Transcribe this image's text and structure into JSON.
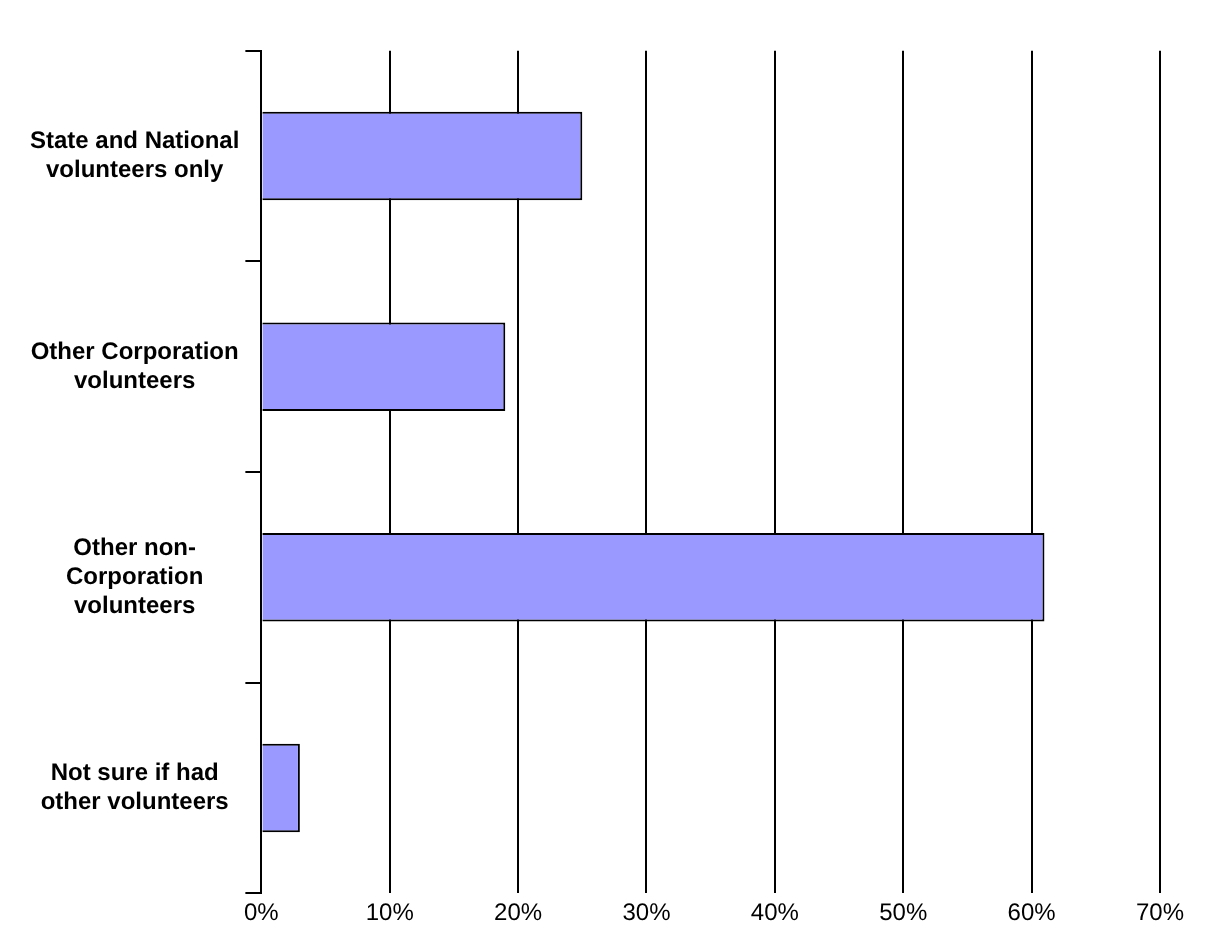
{
  "chart_data": {
    "type": "bar",
    "orientation": "horizontal",
    "categories": [
      "State and National volunteers only",
      "Other Corporation volunteers",
      "Other non-Corporation volunteers",
      "Not sure if had other volunteers"
    ],
    "values": [
      25,
      19,
      61,
      3
    ],
    "color": "#9999ff",
    "xlim": [
      0,
      70
    ],
    "xticks": [
      {
        "value": 0,
        "label": "0%"
      },
      {
        "value": 10,
        "label": "10%"
      },
      {
        "value": 20,
        "label": "20%"
      },
      {
        "value": 30,
        "label": "30%"
      },
      {
        "value": 40,
        "label": "40%"
      },
      {
        "value": 50,
        "label": "50%"
      },
      {
        "value": 60,
        "label": "60%"
      },
      {
        "value": 70,
        "label": "70%"
      }
    ],
    "grid": "x",
    "legend": false
  }
}
